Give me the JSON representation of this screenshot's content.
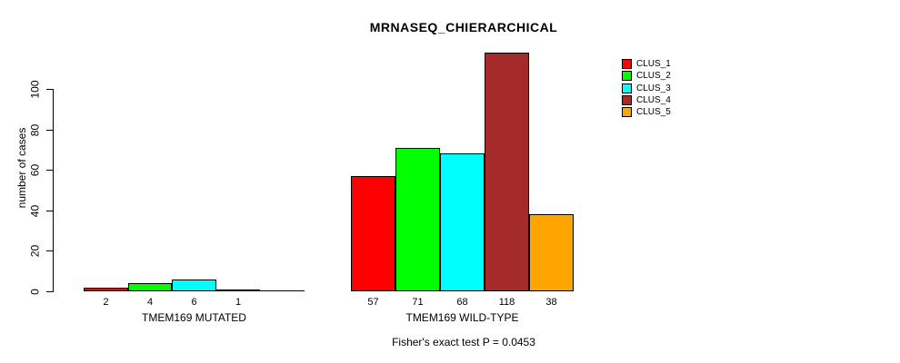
{
  "chart_data": {
    "type": "bar",
    "title": "MRNASEQ_CHIERARCHICAL",
    "ylabel": "number of cases",
    "xlabel": "",
    "ylim": [
      0,
      100
    ],
    "ytick_values": [
      0,
      20,
      40,
      60,
      80,
      100
    ],
    "ytick_labels": [
      "0",
      "20",
      "40",
      "60",
      "80",
      "100"
    ],
    "grid": false,
    "legend_position": "top-right",
    "clusters": [
      {
        "name": "CLUS_1",
        "color": "#ff0000"
      },
      {
        "name": "CLUS_2",
        "color": "#00ff00"
      },
      {
        "name": "CLUS_3",
        "color": "#00ffff"
      },
      {
        "name": "CLUS_4",
        "color": "#a52a2a"
      },
      {
        "name": "CLUS_5",
        "color": "#ffa500"
      }
    ],
    "groups": [
      {
        "label": "TMEM169 MUTATED",
        "values": [
          2,
          4,
          6,
          1,
          0
        ],
        "bar_labels": [
          "2",
          "4",
          "6",
          "1",
          ""
        ]
      },
      {
        "label": "TMEM169 WILD-TYPE",
        "values": [
          57,
          71,
          68,
          118,
          38
        ],
        "bar_labels": [
          "57",
          "71",
          "68",
          "118",
          "38"
        ]
      }
    ],
    "annotation": "Fisher's exact test P = 0.0453"
  }
}
